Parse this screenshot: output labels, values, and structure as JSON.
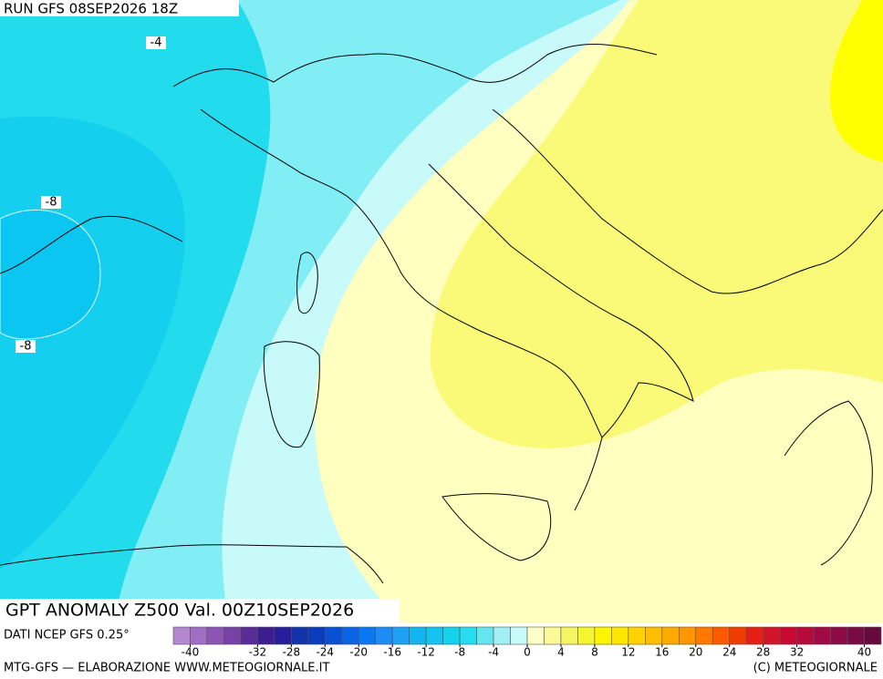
{
  "header": {
    "run": "RUN GFS 08SEP2026 18Z"
  },
  "contour_labels": [
    -4,
    -8,
    -8
  ],
  "title": "GPT ANOMALY Z500 Val. 00Z10SEP2026",
  "source": "DATI NCEP GFS 0.25°",
  "colorbar": {
    "lim": [
      -42,
      42
    ],
    "colors": [
      "#b487d2",
      "#a06ec3",
      "#8c55b4",
      "#7841a5",
      "#5a2d96",
      "#3c1e91",
      "#281e9b",
      "#1432aa",
      "#0a3cbe",
      "#0a50d2",
      "#0a64e6",
      "#0a78f0",
      "#1e8cf5",
      "#1ea0f5",
      "#14b4f0",
      "#14c3f0",
      "#14d2ec",
      "#28dcf0",
      "#64e6f0",
      "#a0f0f5",
      "#c8fafa",
      "#ffffc8",
      "#fafa96",
      "#f5f564",
      "#f5f532",
      "#fff500",
      "#ffe600",
      "#ffd200",
      "#ffbe00",
      "#ffaa00",
      "#ff9600",
      "#ff7800",
      "#ff5a00",
      "#f03c00",
      "#e61e14",
      "#d21428",
      "#c80a32",
      "#b40a3c",
      "#a00a46",
      "#8c0a46",
      "#780a46",
      "#640a3c"
    ],
    "ticks": [
      -40,
      -32,
      -28,
      -24,
      -20,
      -16,
      -12,
      -8,
      -4,
      0,
      4,
      8,
      12,
      16,
      20,
      24,
      28,
      32,
      40
    ]
  },
  "footer": {
    "left": "MTG-GFS — ELABORAZIONE WWW.METEOGIORNALE.IT",
    "right": "(C) METEOGIORNALE"
  }
}
